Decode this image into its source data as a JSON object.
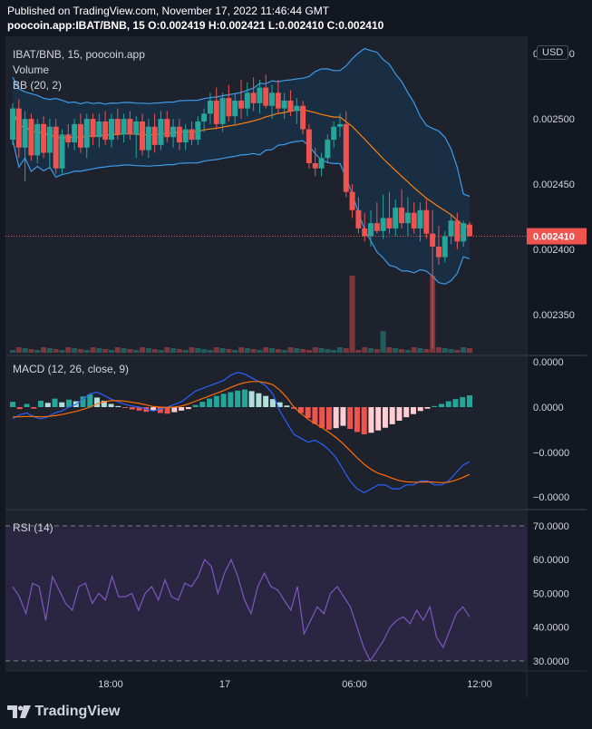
{
  "header": {
    "published": "Published on TradingView.com, November 17, 2022 11:46:44 GMT",
    "ohlc": "poocoin.app:IBAT/BNB, 15 O:0.002419 H:0.002421 L:0.002410 C:0.002410"
  },
  "legend": {
    "symbol": "IBAT/BNB, 15, poocoin.app",
    "volume": "Volume",
    "bb": "BB (20, 2)",
    "macd": "MACD (12, 26, close, 9)",
    "rsi": "RSI (14)"
  },
  "currency": "USD",
  "last_price": "0.002410",
  "brand": "TradingView",
  "colors": {
    "up": "#26a69a",
    "down": "#ef5350",
    "bb_fill": "#1a3048",
    "bb_band": "#3d9be9",
    "bb_basis": "#ff7f0e",
    "rsi_line": "#7e57c2",
    "rsi_fill": "#2a2642",
    "macd_line": "#2962ff",
    "signal": "#ff6d00"
  },
  "chart_data": {
    "type": "candlestick",
    "timeframe": "15",
    "x_ticks": [
      "18:00",
      "17",
      "06:00",
      "12:00"
    ],
    "price_axis": {
      "ticks": [
        "0.002550",
        "0.002500",
        "0.002450",
        "0.002400",
        "0.002350"
      ],
      "ylim": [
        0.00232,
        0.002555
      ]
    },
    "last_price": 0.00241,
    "candles": [
      {
        "o": 0.002484,
        "h": 0.002512,
        "l": 0.00248,
        "c": 0.002508
      },
      {
        "o": 0.002508,
        "h": 0.002515,
        "l": 0.00247,
        "c": 0.002478
      },
      {
        "o": 0.002478,
        "h": 0.002506,
        "l": 0.002452,
        "c": 0.0025
      },
      {
        "o": 0.0025,
        "h": 0.002504,
        "l": 0.002468,
        "c": 0.002472
      },
      {
        "o": 0.002472,
        "h": 0.0025,
        "l": 0.002466,
        "c": 0.002496
      },
      {
        "o": 0.002496,
        "h": 0.002502,
        "l": 0.00247,
        "c": 0.002474
      },
      {
        "o": 0.002474,
        "h": 0.0025,
        "l": 0.002462,
        "c": 0.002494
      },
      {
        "o": 0.002494,
        "h": 0.0025,
        "l": 0.002458,
        "c": 0.002462
      },
      {
        "o": 0.002462,
        "h": 0.002492,
        "l": 0.002458,
        "c": 0.002488
      },
      {
        "o": 0.002488,
        "h": 0.002496,
        "l": 0.002478,
        "c": 0.002482
      },
      {
        "o": 0.002482,
        "h": 0.0025,
        "l": 0.002476,
        "c": 0.002496
      },
      {
        "o": 0.002496,
        "h": 0.002504,
        "l": 0.002474,
        "c": 0.002478
      },
      {
        "o": 0.002478,
        "h": 0.002504,
        "l": 0.00247,
        "c": 0.0025
      },
      {
        "o": 0.0025,
        "h": 0.002504,
        "l": 0.00248,
        "c": 0.002486
      },
      {
        "o": 0.002486,
        "h": 0.002504,
        "l": 0.002478,
        "c": 0.002498
      },
      {
        "o": 0.002498,
        "h": 0.002506,
        "l": 0.00248,
        "c": 0.002484
      },
      {
        "o": 0.002484,
        "h": 0.002504,
        "l": 0.002478,
        "c": 0.0025
      },
      {
        "o": 0.0025,
        "h": 0.002508,
        "l": 0.002484,
        "c": 0.002488
      },
      {
        "o": 0.002488,
        "h": 0.002504,
        "l": 0.002482,
        "c": 0.0025
      },
      {
        "o": 0.0025,
        "h": 0.002506,
        "l": 0.002484,
        "c": 0.002488
      },
      {
        "o": 0.002488,
        "h": 0.002502,
        "l": 0.00247,
        "c": 0.002498
      },
      {
        "o": 0.002498,
        "h": 0.002504,
        "l": 0.002472,
        "c": 0.002476
      },
      {
        "o": 0.002476,
        "h": 0.0025,
        "l": 0.00247,
        "c": 0.002494
      },
      {
        "o": 0.002494,
        "h": 0.002504,
        "l": 0.002474,
        "c": 0.00248
      },
      {
        "o": 0.00248,
        "h": 0.002506,
        "l": 0.002476,
        "c": 0.0025
      },
      {
        "o": 0.0025,
        "h": 0.002506,
        "l": 0.002482,
        "c": 0.002486
      },
      {
        "o": 0.002486,
        "h": 0.0025,
        "l": 0.002478,
        "c": 0.002494
      },
      {
        "o": 0.002494,
        "h": 0.0025,
        "l": 0.002476,
        "c": 0.002482
      },
      {
        "o": 0.002482,
        "h": 0.002496,
        "l": 0.002476,
        "c": 0.002492
      },
      {
        "o": 0.002492,
        "h": 0.002498,
        "l": 0.00248,
        "c": 0.002484
      },
      {
        "o": 0.002484,
        "h": 0.002502,
        "l": 0.00248,
        "c": 0.002498
      },
      {
        "o": 0.002498,
        "h": 0.002508,
        "l": 0.00249,
        "c": 0.002504
      },
      {
        "o": 0.002504,
        "h": 0.00252,
        "l": 0.002496,
        "c": 0.002514
      },
      {
        "o": 0.002514,
        "h": 0.002524,
        "l": 0.002492,
        "c": 0.002496
      },
      {
        "o": 0.002496,
        "h": 0.00252,
        "l": 0.00249,
        "c": 0.002516
      },
      {
        "o": 0.002516,
        "h": 0.002526,
        "l": 0.002498,
        "c": 0.002502
      },
      {
        "o": 0.002502,
        "h": 0.00252,
        "l": 0.002496,
        "c": 0.002514
      },
      {
        "o": 0.002514,
        "h": 0.00253,
        "l": 0.0025,
        "c": 0.002508
      },
      {
        "o": 0.002508,
        "h": 0.002528,
        "l": 0.002502,
        "c": 0.00252
      },
      {
        "o": 0.00252,
        "h": 0.002532,
        "l": 0.002506,
        "c": 0.002512
      },
      {
        "o": 0.002512,
        "h": 0.00253,
        "l": 0.002504,
        "c": 0.002524
      },
      {
        "o": 0.002524,
        "h": 0.002534,
        "l": 0.002508,
        "c": 0.00251
      },
      {
        "o": 0.00251,
        "h": 0.002526,
        "l": 0.0025,
        "c": 0.00252
      },
      {
        "o": 0.00252,
        "h": 0.00253,
        "l": 0.002504,
        "c": 0.002508
      },
      {
        "o": 0.002508,
        "h": 0.00252,
        "l": 0.0025,
        "c": 0.002514
      },
      {
        "o": 0.002514,
        "h": 0.002522,
        "l": 0.002502,
        "c": 0.002506
      },
      {
        "o": 0.002506,
        "h": 0.002516,
        "l": 0.002496,
        "c": 0.00251
      },
      {
        "o": 0.00251,
        "h": 0.002514,
        "l": 0.002488,
        "c": 0.002492
      },
      {
        "o": 0.002492,
        "h": 0.002496,
        "l": 0.002462,
        "c": 0.002466
      },
      {
        "o": 0.002466,
        "h": 0.002478,
        "l": 0.002456,
        "c": 0.002462
      },
      {
        "o": 0.002462,
        "h": 0.002474,
        "l": 0.002456,
        "c": 0.00247
      },
      {
        "o": 0.00247,
        "h": 0.002488,
        "l": 0.002466,
        "c": 0.002484
      },
      {
        "o": 0.002484,
        "h": 0.002498,
        "l": 0.002478,
        "c": 0.002494
      },
      {
        "o": 0.002494,
        "h": 0.002504,
        "l": 0.002486,
        "c": 0.002496
      },
      {
        "o": 0.002496,
        "h": 0.002506,
        "l": 0.00244,
        "c": 0.002444
      },
      {
        "o": 0.002444,
        "h": 0.00245,
        "l": 0.002424,
        "c": 0.00243
      },
      {
        "o": 0.00243,
        "h": 0.00244,
        "l": 0.002412,
        "c": 0.002416
      },
      {
        "o": 0.002416,
        "h": 0.002428,
        "l": 0.002406,
        "c": 0.00241
      },
      {
        "o": 0.00241,
        "h": 0.00243,
        "l": 0.002402,
        "c": 0.00242
      },
      {
        "o": 0.00242,
        "h": 0.002436,
        "l": 0.002412,
        "c": 0.002414
      },
      {
        "o": 0.002414,
        "h": 0.002442,
        "l": 0.002408,
        "c": 0.002424
      },
      {
        "o": 0.002424,
        "h": 0.002444,
        "l": 0.002412,
        "c": 0.002416
      },
      {
        "o": 0.002416,
        "h": 0.002438,
        "l": 0.00241,
        "c": 0.002432
      },
      {
        "o": 0.002432,
        "h": 0.002446,
        "l": 0.002416,
        "c": 0.00242
      },
      {
        "o": 0.00242,
        "h": 0.00244,
        "l": 0.00241,
        "c": 0.002428
      },
      {
        "o": 0.002428,
        "h": 0.002436,
        "l": 0.002412,
        "c": 0.002416
      },
      {
        "o": 0.002416,
        "h": 0.002436,
        "l": 0.002406,
        "c": 0.00243
      },
      {
        "o": 0.00243,
        "h": 0.002438,
        "l": 0.002408,
        "c": 0.002412
      },
      {
        "o": 0.002412,
        "h": 0.00243,
        "l": 0.002324,
        "c": 0.002402
      },
      {
        "o": 0.002402,
        "h": 0.002418,
        "l": 0.002388,
        "c": 0.002394
      },
      {
        "o": 0.002394,
        "h": 0.002414,
        "l": 0.00239,
        "c": 0.00241
      },
      {
        "o": 0.00241,
        "h": 0.002426,
        "l": 0.002404,
        "c": 0.002422
      },
      {
        "o": 0.002422,
        "h": 0.002428,
        "l": 0.0024,
        "c": 0.002406
      },
      {
        "o": 0.002406,
        "h": 0.002422,
        "l": 0.002402,
        "c": 0.00242
      },
      {
        "o": 0.002419,
        "h": 0.002421,
        "l": 0.00241,
        "c": 0.00241
      }
    ],
    "volume_spikes": [
      {
        "index": 55,
        "value_rel": 1.0,
        "color": "down"
      },
      {
        "index": 68,
        "value_rel": 1.0,
        "color": "down"
      },
      {
        "index": 60,
        "value_rel": 0.28,
        "color": "up"
      }
    ],
    "macd": {
      "axis_ticks": [
        "0.0000",
        "0.0000",
        "−0.0000",
        "−0.0000"
      ],
      "histogram": [
        1,
        -0.5,
        0.6,
        -0.4,
        1.2,
        0.8,
        1.6,
        0.9,
        1.4,
        1.1,
        2,
        2.4,
        1.8,
        1.2,
        0.6,
        0.2,
        -0.2,
        -0.6,
        -0.9,
        -1.2,
        -0.8,
        -1.5,
        -1.7,
        -1.3,
        -0.9,
        -0.5,
        0.4,
        1,
        1.6,
        2.1,
        2.5,
        2.8,
        3.1,
        3.3,
        3.0,
        2.6,
        2.1,
        1.5,
        0.9,
        0.3,
        -0.4,
        -1.5,
        -2.8,
        -4.3,
        -5.3,
        -5.8,
        -5.4,
        -4.8,
        -5.6,
        -6.4,
        -7,
        -6.6,
        -6,
        -5.3,
        -4.4,
        -3.5,
        -2.6,
        -1.8,
        -1,
        -0.4,
        0.2,
        0.6,
        1.1,
        1.5,
        1.9,
        2.2
      ],
      "macd_line": [
        -3,
        -2,
        -1.5,
        -2.5,
        -3,
        -2.5,
        -1.5,
        -1,
        0,
        0.5,
        1.5,
        2.5,
        2.8,
        2.2,
        1.5,
        1,
        0.5,
        0.2,
        0,
        -0.5,
        -1,
        -0.5,
        0,
        0.5,
        1,
        2,
        3,
        3.5,
        4,
        4.5,
        5,
        6,
        6.5,
        6.2,
        5.5,
        4.8,
        4,
        2.5,
        -1,
        -4,
        -7,
        -8,
        -9,
        -8.5,
        -9.5,
        -11,
        -13,
        -16,
        -19,
        -21,
        -22,
        -21,
        -20,
        -20,
        -21,
        -21,
        -20,
        -20,
        -19,
        -19,
        -20,
        -20,
        -19,
        -17,
        -15,
        -14
      ],
      "signal_line": [
        -2.5,
        -2.5,
        -2.4,
        -2.4,
        -2.5,
        -2.4,
        -2.2,
        -1.9,
        -1.5,
        -1.1,
        -0.6,
        0,
        0.6,
        1,
        1.2,
        1.2,
        1.1,
        0.9,
        0.7,
        0.4,
        0.1,
        0,
        -0.1,
        0,
        0.2,
        0.6,
        1.1,
        1.6,
        2.1,
        2.6,
        3.1,
        3.7,
        4.2,
        4.6,
        4.8,
        4.8,
        4.6,
        4.2,
        3.2,
        1.8,
        0,
        -1.6,
        -3.1,
        -4.2,
        -5.3,
        -6.5,
        -7.8,
        -9.4,
        -11.2,
        -13,
        -14.7,
        -16,
        -17,
        -17.6,
        -18.3,
        -18.9,
        -19.2,
        -19.3,
        -19.3,
        -19.2,
        -19.3,
        -19.4,
        -19.3,
        -18.8,
        -18.1,
        -17.3
      ]
    },
    "rsi": {
      "axis_ticks": [
        "70.0000",
        "60.0000",
        "50.0000",
        "40.0000",
        "30.0000"
      ],
      "ylim": [
        27,
        74
      ],
      "upper_band": 70,
      "lower_band": 30,
      "values": [
        52,
        49,
        44,
        53,
        52,
        42,
        55,
        51,
        47,
        45,
        52,
        53,
        47,
        50,
        48,
        55,
        49,
        49,
        50,
        45,
        50,
        52,
        48,
        54,
        49,
        48,
        53,
        52,
        55,
        60,
        58,
        50,
        56,
        60,
        55,
        48,
        44,
        52,
        56,
        52,
        51,
        48,
        45,
        52,
        38,
        42,
        46,
        44,
        50,
        52,
        49,
        46,
        40,
        34,
        30,
        33,
        36,
        40,
        42,
        43,
        41,
        45,
        42,
        46,
        37,
        34,
        39,
        44,
        46,
        43
      ]
    }
  }
}
